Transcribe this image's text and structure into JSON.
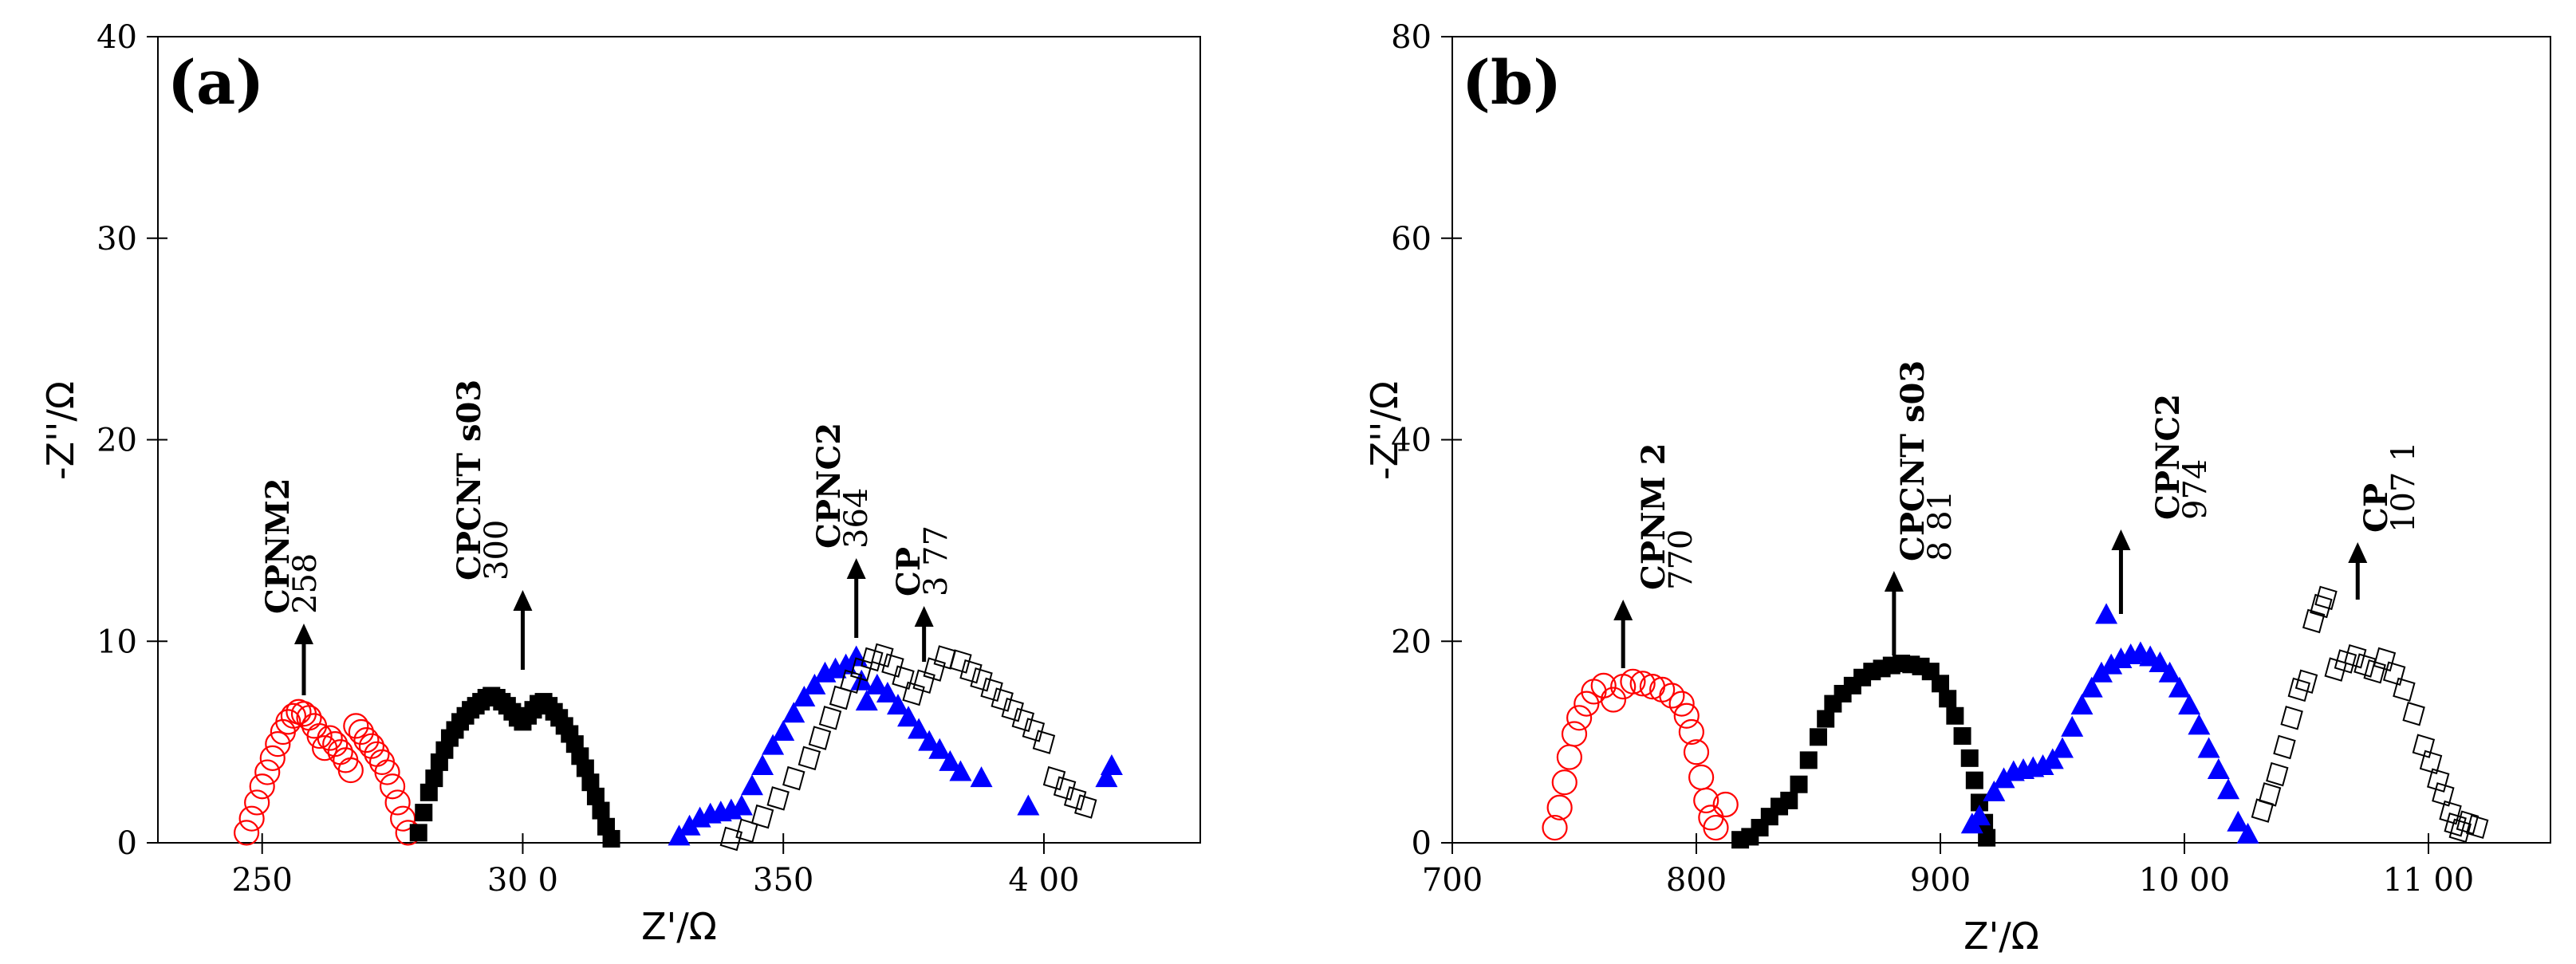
{
  "chart_data": [
    {
      "type": "scatter",
      "panel_label": "(a)",
      "xlabel": "Z'/Ω",
      "ylabel": "-Z''/Ω",
      "xlim": [
        230,
        430
      ],
      "ylim": [
        0,
        40
      ],
      "xticks": [
        250,
        300,
        350,
        400
      ],
      "xtick_labels": [
        "250",
        "30 0",
        "350",
        "4 00"
      ],
      "yticks": [
        0,
        10,
        20,
        30,
        40
      ],
      "ytick_labels": [
        "0",
        "10",
        "20",
        "30",
        "40"
      ],
      "series": [
        {
          "name": "CPNM2",
          "marker": "circle-open",
          "color": "#ff0000",
          "points": [
            [
              247,
              0.5
            ],
            [
              248,
              1.2
            ],
            [
              249,
              2
            ],
            [
              250,
              2.8
            ],
            [
              251,
              3.5
            ],
            [
              252,
              4.2
            ],
            [
              253,
              4.9
            ],
            [
              254,
              5.5
            ],
            [
              255,
              6
            ],
            [
              256,
              6.3
            ],
            [
              257,
              6.5
            ],
            [
              258,
              6.4
            ],
            [
              259,
              6.2
            ],
            [
              260,
              5.8
            ],
            [
              261,
              5.3
            ],
            [
              262,
              4.7
            ],
            [
              263,
              5.2
            ],
            [
              264,
              4.9
            ],
            [
              265,
              4.5
            ],
            [
              266,
              4.1
            ],
            [
              267,
              3.6
            ],
            [
              268,
              5.8
            ],
            [
              269,
              5.5
            ],
            [
              270,
              5.1
            ],
            [
              271,
              4.8
            ],
            [
              272,
              4.4
            ],
            [
              273,
              4
            ],
            [
              274,
              3.5
            ],
            [
              275,
              2.8
            ],
            [
              276,
              2
            ],
            [
              277,
              1.2
            ],
            [
              278,
              0.5
            ]
          ]
        },
        {
          "name": "CPCNTs03",
          "marker": "square-filled",
          "color": "#000000",
          "points": [
            [
              280,
              0.5
            ],
            [
              281,
              1.5
            ],
            [
              282,
              2.5
            ],
            [
              283,
              3.2
            ],
            [
              284,
              4
            ],
            [
              285,
              4.6
            ],
            [
              286,
              5.2
            ],
            [
              287,
              5.6
            ],
            [
              288,
              6
            ],
            [
              289,
              6.3
            ],
            [
              290,
              6.6
            ],
            [
              291,
              6.8
            ],
            [
              292,
              7
            ],
            [
              293,
              7.2
            ],
            [
              294,
              7.3
            ],
            [
              295,
              7.2
            ],
            [
              296,
              7
            ],
            [
              297,
              6.8
            ],
            [
              298,
              6.5
            ],
            [
              299,
              6.2
            ],
            [
              300,
              6
            ],
            [
              301,
              6.3
            ],
            [
              302,
              6.6
            ],
            [
              303,
              6.9
            ],
            [
              304,
              7
            ],
            [
              305,
              6.8
            ],
            [
              306,
              6.5
            ],
            [
              307,
              6.2
            ],
            [
              308,
              5.8
            ],
            [
              309,
              5.4
            ],
            [
              310,
              4.9
            ],
            [
              311,
              4.3
            ],
            [
              312,
              3.7
            ],
            [
              313,
              3
            ],
            [
              314,
              2.3
            ],
            [
              315,
              1.6
            ],
            [
              316,
              0.8
            ],
            [
              317,
              0.2
            ]
          ]
        },
        {
          "name": "CPNC2",
          "marker": "triangle-filled",
          "color": "#0000ff",
          "points": [
            [
              330,
              0.3
            ],
            [
              332,
              0.8
            ],
            [
              334,
              1.2
            ],
            [
              336,
              1.4
            ],
            [
              338,
              1.5
            ],
            [
              340,
              1.6
            ],
            [
              342,
              1.8
            ],
            [
              344,
              2.8
            ],
            [
              346,
              3.8
            ],
            [
              348,
              4.8
            ],
            [
              350,
              5.5
            ],
            [
              352,
              6.4
            ],
            [
              354,
              7.2
            ],
            [
              356,
              7.8
            ],
            [
              358,
              8.4
            ],
            [
              360,
              8.6
            ],
            [
              362,
              8.8
            ],
            [
              364,
              9.2
            ],
            [
              365,
              8
            ],
            [
              366,
              7
            ],
            [
              368,
              7.8
            ],
            [
              370,
              7.4
            ],
            [
              372,
              6.8
            ],
            [
              374,
              6.2
            ],
            [
              376,
              5.6
            ],
            [
              378,
              5
            ],
            [
              380,
              4.6
            ],
            [
              382,
              4
            ],
            [
              384,
              3.5
            ],
            [
              388,
              3.2
            ],
            [
              397,
              1.8
            ],
            [
              412,
              3.2
            ],
            [
              413,
              3.8
            ]
          ]
        },
        {
          "name": "CP",
          "marker": "diamond-open",
          "color": "#000000",
          "points": [
            [
              340,
              0.2
            ],
            [
              343,
              0.6
            ],
            [
              346,
              1.3
            ],
            [
              349,
              2.2
            ],
            [
              352,
              3.2
            ],
            [
              355,
              4.2
            ],
            [
              357,
              5.2
            ],
            [
              359,
              6.2
            ],
            [
              361,
              7.2
            ],
            [
              363,
              8
            ],
            [
              365,
              8.6
            ],
            [
              367,
              9.1
            ],
            [
              369,
              9.3
            ],
            [
              371,
              8.8
            ],
            [
              373,
              8.2
            ],
            [
              375,
              7.4
            ],
            [
              377,
              8
            ],
            [
              379,
              8.6
            ],
            [
              381,
              9.2
            ],
            [
              384,
              9
            ],
            [
              386,
              8.5
            ],
            [
              388,
              8.1
            ],
            [
              390,
              7.6
            ],
            [
              392,
              7.1
            ],
            [
              394,
              6.6
            ],
            [
              396,
              6.1
            ],
            [
              398,
              5.6
            ],
            [
              400,
              5
            ],
            [
              402,
              3.2
            ],
            [
              404,
              2.7
            ],
            [
              406,
              2.2
            ],
            [
              408,
              1.8
            ]
          ]
        }
      ],
      "annotations": [
        {
          "name": "CPNM2",
          "value": "258",
          "x": 258
        },
        {
          "name": "CPCNT s03",
          "value": "300",
          "x": 300
        },
        {
          "name": "CPNC2",
          "value": "364",
          "x": 364
        },
        {
          "name": "CP",
          "value": "3 77",
          "x": 377
        }
      ]
    },
    {
      "type": "scatter",
      "panel_label": "(b)",
      "xlabel": "Z'/Ω",
      "ylabel": "-Z''/Ω",
      "xlim": [
        700,
        1150
      ],
      "ylim": [
        0,
        80
      ],
      "xticks": [
        700,
        800,
        900,
        1000,
        1100
      ],
      "xtick_labels": [
        "700",
        "800",
        "900",
        "10 00",
        "11 00"
      ],
      "yticks": [
        0,
        20,
        40,
        60,
        80
      ],
      "ytick_labels": [
        "0",
        "20",
        "40",
        "60",
        "80"
      ],
      "series": [
        {
          "name": "CPNM 2",
          "marker": "circle-open",
          "color": "#ff0000",
          "points": [
            [
              742,
              1.5
            ],
            [
              744,
              3.5
            ],
            [
              746,
              6
            ],
            [
              748,
              8.5
            ],
            [
              750,
              10.8
            ],
            [
              752,
              12.4
            ],
            [
              755,
              13.8
            ],
            [
              758,
              15
            ],
            [
              762,
              15.6
            ],
            [
              766,
              14.2
            ],
            [
              770,
              15.5
            ],
            [
              774,
              16
            ],
            [
              778,
              15.8
            ],
            [
              782,
              15.5
            ],
            [
              786,
              15.2
            ],
            [
              790,
              14.6
            ],
            [
              794,
              13.8
            ],
            [
              796,
              12.6
            ],
            [
              798,
              11
            ],
            [
              800,
              9
            ],
            [
              802,
              6.5
            ],
            [
              804,
              4.2
            ],
            [
              806,
              2.5
            ],
            [
              808,
              1.5
            ],
            [
              812,
              3.8
            ]
          ]
        },
        {
          "name": "CPCNT s03",
          "marker": "square-filled",
          "color": "#000000",
          "points": [
            [
              818,
              0.3
            ],
            [
              822,
              0.6
            ],
            [
              826,
              1.5
            ],
            [
              830,
              2.6
            ],
            [
              834,
              3.6
            ],
            [
              838,
              4.2
            ],
            [
              842,
              5.8
            ],
            [
              846,
              8.2
            ],
            [
              850,
              10.5
            ],
            [
              853,
              12.3
            ],
            [
              856,
              13.8
            ],
            [
              860,
              14.8
            ],
            [
              864,
              15.6
            ],
            [
              868,
              16.4
            ],
            [
              872,
              17
            ],
            [
              876,
              17.3
            ],
            [
              880,
              17.6
            ],
            [
              884,
              17.8
            ],
            [
              888,
              17.7
            ],
            [
              892,
              17.5
            ],
            [
              896,
              17
            ],
            [
              900,
              15.8
            ],
            [
              903,
              14.3
            ],
            [
              906,
              12.6
            ],
            [
              909,
              10.6
            ],
            [
              912,
              8.4
            ],
            [
              914,
              6.2
            ],
            [
              916,
              4
            ],
            [
              918,
              2
            ],
            [
              919,
              0.5
            ]
          ]
        },
        {
          "name": "CPNC2",
          "marker": "triangle-filled",
          "color": "#0000ff",
          "points": [
            [
              913,
              1.8
            ],
            [
              916,
              2.6
            ],
            [
              922,
              5
            ],
            [
              926,
              6.3
            ],
            [
              930,
              7
            ],
            [
              934,
              7.2
            ],
            [
              938,
              7.4
            ],
            [
              942,
              7.6
            ],
            [
              946,
              8.2
            ],
            [
              950,
              9.3
            ],
            [
              954,
              11.4
            ],
            [
              958,
              13.6
            ],
            [
              962,
              15.3
            ],
            [
              966,
              16.8
            ],
            [
              970,
              17.6
            ],
            [
              974,
              18.2
            ],
            [
              978,
              18.6
            ],
            [
              982,
              18.8
            ],
            [
              986,
              18.4
            ],
            [
              990,
              17.8
            ],
            [
              994,
              16.8
            ],
            [
              998,
              15.3
            ],
            [
              1002,
              13.6
            ],
            [
              1006,
              11.6
            ],
            [
              1010,
              9.3
            ],
            [
              1014,
              7.2
            ],
            [
              1018,
              5.2
            ],
            [
              1022,
              2
            ],
            [
              1026,
              0.8
            ],
            [
              968,
              22.6
            ]
          ]
        },
        {
          "name": "CP",
          "marker": "diamond-open",
          "color": "#000000",
          "points": [
            [
              1032,
              3.2
            ],
            [
              1035,
              4.8
            ],
            [
              1038,
              6.8
            ],
            [
              1041,
              9.5
            ],
            [
              1044,
              12.4
            ],
            [
              1047,
              15.2
            ],
            [
              1050,
              16
            ],
            [
              1053,
              22
            ],
            [
              1056,
              23.5
            ],
            [
              1058,
              24.3
            ],
            [
              1062,
              17.2
            ],
            [
              1066,
              18
            ],
            [
              1070,
              18.5
            ],
            [
              1074,
              17.6
            ],
            [
              1078,
              17
            ],
            [
              1082,
              18.2
            ],
            [
              1086,
              16.8
            ],
            [
              1090,
              15.2
            ],
            [
              1094,
              12.8
            ],
            [
              1098,
              9.6
            ],
            [
              1101,
              8
            ],
            [
              1104,
              6.2
            ],
            [
              1106,
              4.8
            ],
            [
              1109,
              3
            ],
            [
              1111,
              1.8
            ],
            [
              1113,
              1.2
            ],
            [
              1116,
              2
            ],
            [
              1120,
              1.6
            ]
          ]
        }
      ],
      "annotations": [
        {
          "name": "CPNM 2",
          "value": "770",
          "x": 770
        },
        {
          "name": "CPCNT s03",
          "value": "8 81",
          "x": 881
        },
        {
          "name": "CPNC2",
          "value": "974",
          "x": 974
        },
        {
          "name": "CP",
          "value": "107 1",
          "x": 1071
        }
      ]
    }
  ]
}
